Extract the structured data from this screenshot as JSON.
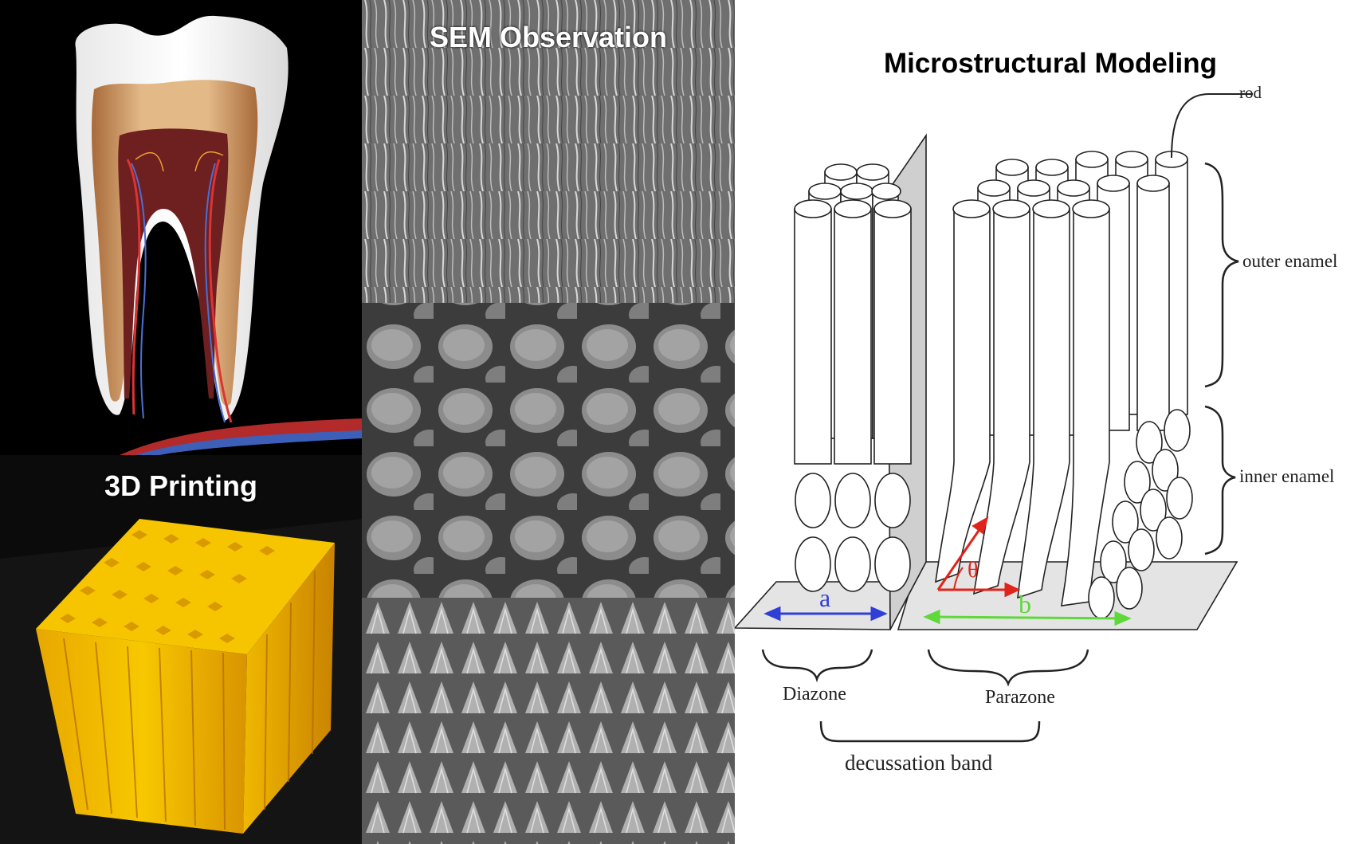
{
  "panels": {
    "printing": {
      "title": "3D Printing"
    },
    "sem": {
      "title": "SEM Observation"
    },
    "modeling": {
      "title": "Microstructural Modeling",
      "labels": {
        "rod": "rod",
        "outer_enamel": "outer enamel",
        "inner_enamel": "inner enamel",
        "a": "a",
        "b": "b",
        "theta": "θ",
        "diazone": "Diazone",
        "parazone": "Parazone",
        "decussation_band": "decussation band"
      }
    }
  },
  "colors": {
    "background": "#000000",
    "a_arrow": "#2f3fd6",
    "b_arrow": "#5fd83a",
    "theta_arrow": "#e0241c",
    "print_yellow": "#f5c400"
  }
}
